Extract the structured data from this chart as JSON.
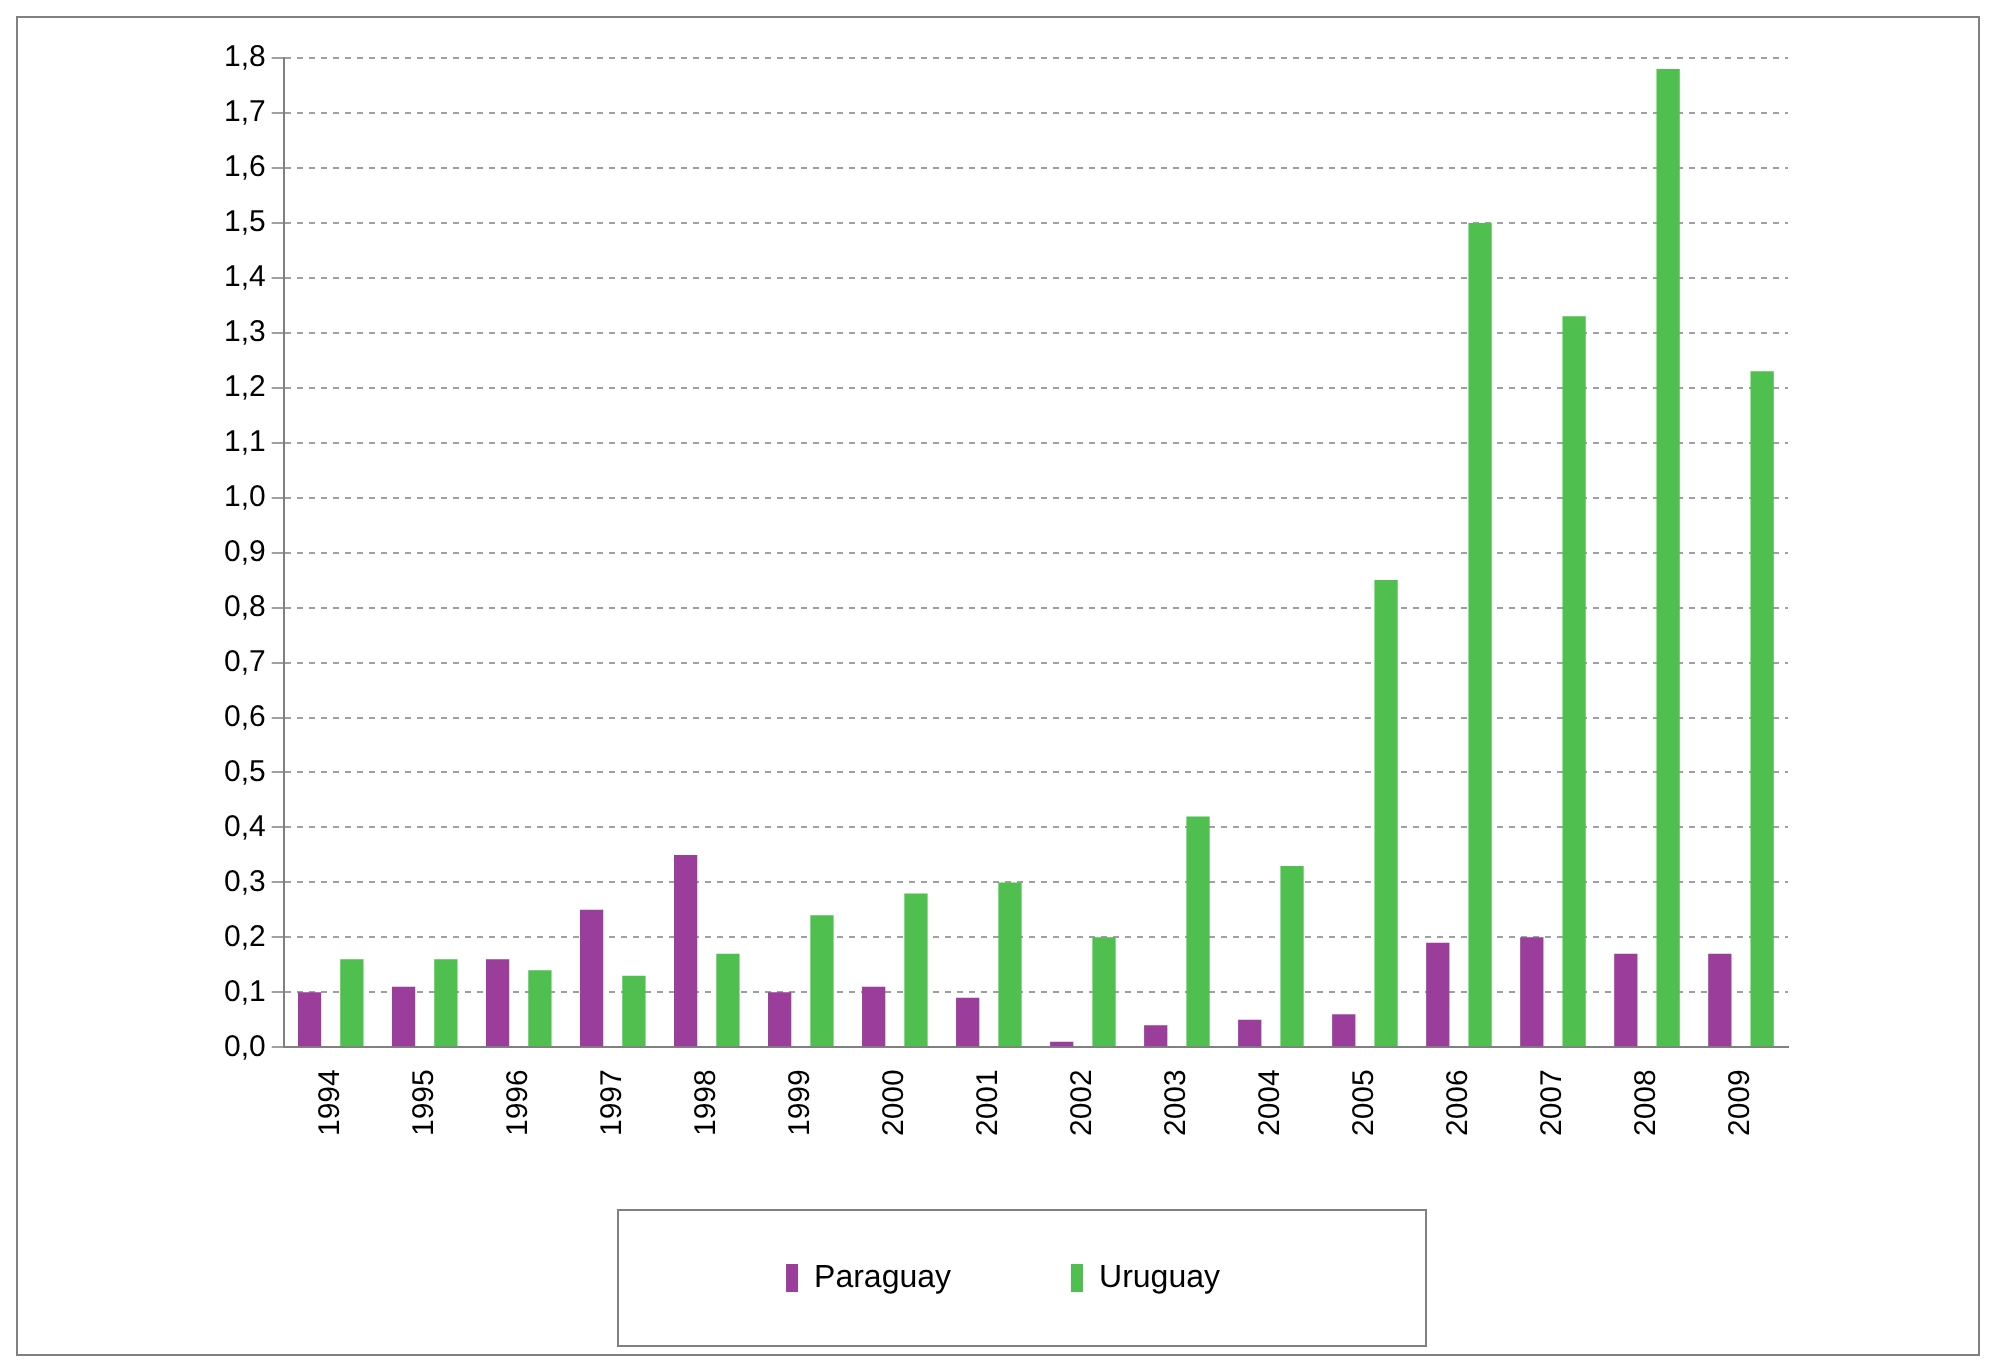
{
  "chart_data": {
    "type": "bar",
    "categories": [
      "1994",
      "1995",
      "1996",
      "1997",
      "1998",
      "1999",
      "2000",
      "2001",
      "2002",
      "2003",
      "2004",
      "2005",
      "2006",
      "2007",
      "2008",
      "2009"
    ],
    "series": [
      {
        "name": "Paraguay",
        "color": "#9b3d9b",
        "values": [
          0.1,
          0.11,
          0.16,
          0.25,
          0.35,
          0.1,
          0.11,
          0.09,
          0.01,
          0.04,
          0.05,
          0.06,
          0.19,
          0.2,
          0.17,
          0.17
        ]
      },
      {
        "name": "Uruguay",
        "color": "#4fbf4f",
        "values": [
          0.16,
          0.16,
          0.14,
          0.13,
          0.17,
          0.24,
          0.28,
          0.3,
          0.2,
          0.42,
          0.33,
          0.85,
          1.5,
          1.33,
          1.78,
          1.23
        ]
      }
    ],
    "ylim": [
      0,
      1.8
    ],
    "yticks": [
      {
        "value": 0,
        "label": "0,0"
      },
      {
        "value": 0.1,
        "label": "0,1"
      },
      {
        "value": 0.2,
        "label": "0,2"
      },
      {
        "value": 0.3,
        "label": "0,3"
      },
      {
        "value": 0.4,
        "label": "0,4"
      },
      {
        "value": 0.5,
        "label": "0,5"
      },
      {
        "value": 0.6,
        "label": "0,6"
      },
      {
        "value": 0.7,
        "label": "0,7"
      },
      {
        "value": 0.8,
        "label": "0,8"
      },
      {
        "value": 0.9,
        "label": "0,9"
      },
      {
        "value": 1.0,
        "label": "1,0"
      },
      {
        "value": 1.1,
        "label": "1,1"
      },
      {
        "value": 1.2,
        "label": "1,2"
      },
      {
        "value": 1.3,
        "label": "1,3"
      },
      {
        "value": 1.4,
        "label": "1,4"
      },
      {
        "value": 1.5,
        "label": "1,5"
      },
      {
        "value": 1.6,
        "label": "1,6"
      },
      {
        "value": 1.7,
        "label": "1,7"
      },
      {
        "value": 1.8,
        "label": "1,8"
      }
    ],
    "grid": "y",
    "legend": "bottom"
  }
}
